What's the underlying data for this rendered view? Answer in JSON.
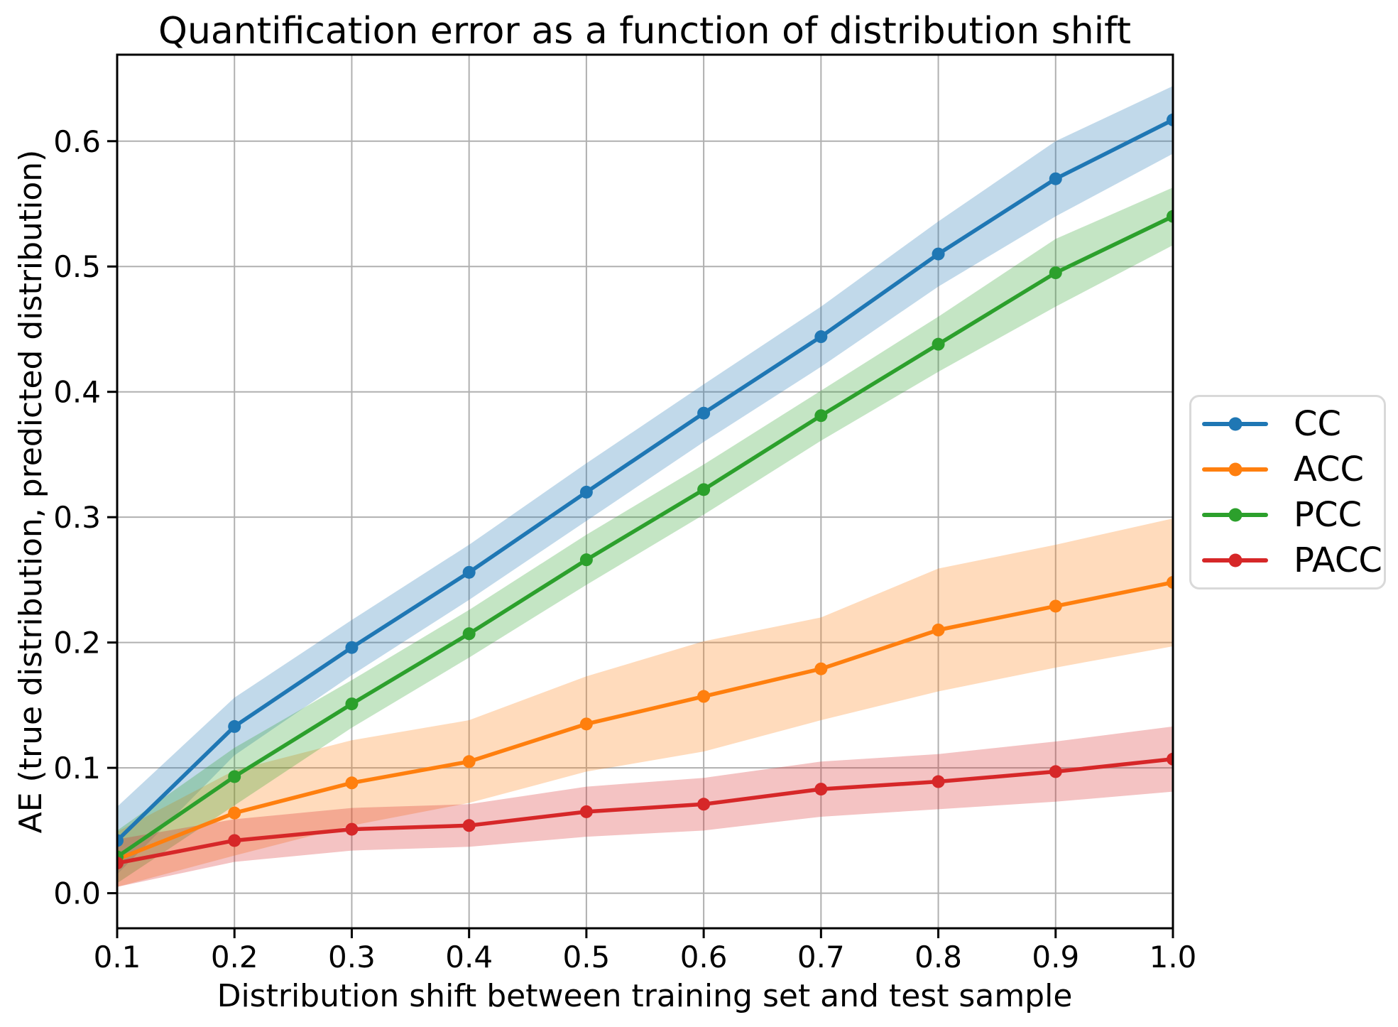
{
  "chart_data": {
    "type": "line",
    "title": "Quantification error as a function of distribution shift",
    "xlabel": "Distribution shift between training set and test sample",
    "ylabel": "AE (true distribution, predicted distribution)",
    "x": [
      0.1,
      0.2,
      0.3,
      0.4,
      0.5,
      0.6,
      0.7,
      0.8,
      0.9,
      1.0
    ],
    "x_tick_labels": [
      "0.1",
      "0.2",
      "0.3",
      "0.4",
      "0.5",
      "0.6",
      "0.7",
      "0.8",
      "0.9",
      "1.0"
    ],
    "y_ticks": [
      0.0,
      0.1,
      0.2,
      0.3,
      0.4,
      0.5,
      0.6
    ],
    "y_tick_labels": [
      "0.0",
      "0.1",
      "0.2",
      "0.3",
      "0.4",
      "0.5",
      "0.6"
    ],
    "xlim": [
      0.1,
      1.0
    ],
    "ylim": [
      -0.028,
      0.669
    ],
    "grid": true,
    "grid_color": "#b0b0b0",
    "band_alpha": 0.28,
    "marker": "circle",
    "legend_position": "center-right-outside",
    "series": [
      {
        "name": "CC",
        "color": "#1f77b4",
        "values": [
          0.042,
          0.133,
          0.196,
          0.256,
          0.32,
          0.383,
          0.444,
          0.51,
          0.57,
          0.617
        ],
        "band_halfwidth": [
          0.027,
          0.023,
          0.022,
          0.022,
          0.023,
          0.023,
          0.024,
          0.026,
          0.03,
          0.027
        ]
      },
      {
        "name": "ACC",
        "color": "#ff7f0e",
        "values": [
          0.027,
          0.064,
          0.088,
          0.105,
          0.135,
          0.157,
          0.179,
          0.21,
          0.229,
          0.248
        ],
        "band_halfwidth": [
          0.022,
          0.034,
          0.034,
          0.033,
          0.038,
          0.044,
          0.041,
          0.049,
          0.049,
          0.051
        ]
      },
      {
        "name": "PCC",
        "color": "#2ca02c",
        "values": [
          0.029,
          0.093,
          0.151,
          0.207,
          0.266,
          0.322,
          0.381,
          0.438,
          0.495,
          0.54
        ],
        "band_halfwidth": [
          0.021,
          0.023,
          0.019,
          0.019,
          0.02,
          0.02,
          0.02,
          0.022,
          0.027,
          0.023
        ]
      },
      {
        "name": "PACC",
        "color": "#d62728",
        "values": [
          0.024,
          0.042,
          0.051,
          0.054,
          0.065,
          0.071,
          0.083,
          0.089,
          0.097,
          0.107
        ],
        "band_halfwidth": [
          0.019,
          0.017,
          0.017,
          0.017,
          0.02,
          0.021,
          0.022,
          0.022,
          0.024,
          0.026
        ]
      }
    ]
  }
}
